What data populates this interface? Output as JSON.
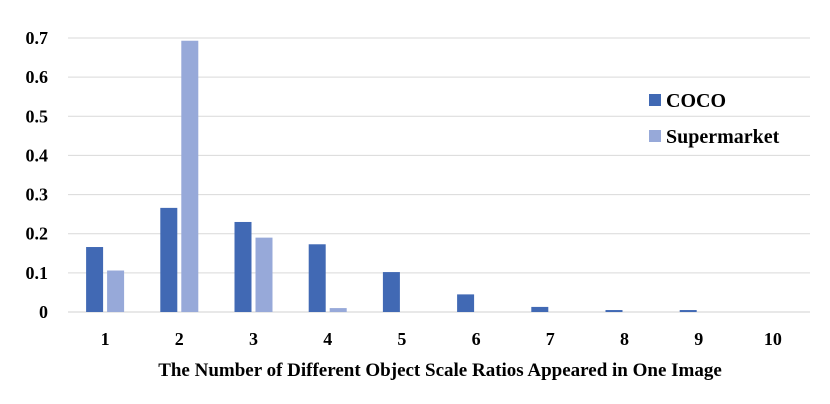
{
  "chart_data": {
    "type": "bar",
    "title": "",
    "xlabel": "The Number of Different Object Scale Ratios Appeared in One Image",
    "ylabel": "",
    "categories": [
      "1",
      "2",
      "3",
      "4",
      "5",
      "6",
      "7",
      "8",
      "9",
      "10"
    ],
    "ylim": [
      0,
      0.7
    ],
    "yticks": [
      "0",
      "0.1",
      "0.2",
      "0.3",
      "0.4",
      "0.5",
      "0.6",
      "0.7"
    ],
    "grid": "horizontal",
    "legend_position": "right",
    "series": [
      {
        "name": "COCO",
        "color": "#4169b4",
        "values": [
          0.166,
          0.266,
          0.23,
          0.173,
          0.102,
          0.045,
          0.013,
          0.005,
          0.005,
          0.0
        ]
      },
      {
        "name": "Supermarket",
        "color": "#97a9d9",
        "values": [
          0.106,
          0.693,
          0.19,
          0.01,
          0.0,
          0.0,
          0.0,
          0.0,
          0.0,
          0.0
        ]
      }
    ]
  }
}
